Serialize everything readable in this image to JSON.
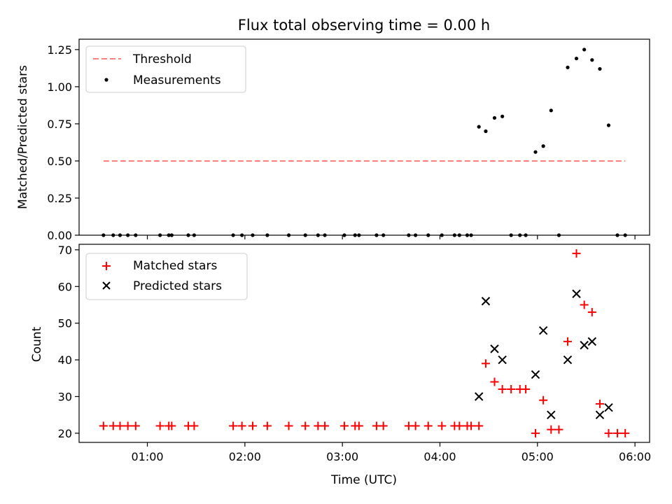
{
  "chart_data": [
    {
      "type": "scatter",
      "title": "Flux total observing time = 0.00 h",
      "ylabel": "Matched/Predicted stars",
      "xlabel": "",
      "xlim": [
        0.3,
        6.15
      ],
      "ylim": [
        0,
        1.32
      ],
      "yticks": [
        0,
        0.25,
        0.5,
        0.75,
        1.0,
        1.25
      ],
      "ytick_labels": [
        "0.00",
        "0.25",
        "0.50",
        "0.75",
        "1.00",
        "1.25"
      ],
      "xticks": [
        1,
        2,
        3,
        4,
        5,
        6
      ],
      "grid": false,
      "legend": {
        "position": "top-left",
        "entries": [
          "Threshold",
          "Measurements"
        ]
      },
      "threshold": {
        "name": "Threshold",
        "value": 0.5,
        "x_range": [
          0.55,
          5.9
        ],
        "color": "#ff7f7f"
      },
      "series": [
        {
          "name": "Measurements",
          "marker": "dot",
          "color": "#000000",
          "x": [
            0.55,
            0.65,
            0.72,
            0.8,
            0.88,
            1.13,
            1.22,
            1.25,
            1.42,
            1.48,
            1.88,
            1.97,
            2.08,
            2.23,
            2.45,
            2.62,
            2.75,
            2.82,
            3.02,
            3.13,
            3.17,
            3.35,
            3.42,
            3.68,
            3.75,
            3.88,
            4.02,
            4.15,
            4.2,
            4.28,
            4.32,
            4.4,
            4.47,
            4.56,
            4.64,
            4.73,
            4.82,
            4.88,
            4.98,
            5.06,
            5.14,
            5.22,
            5.31,
            5.4,
            5.48,
            5.56,
            5.64,
            5.73,
            5.82,
            5.9
          ],
          "y": [
            0,
            0,
            0,
            0,
            0,
            0,
            0,
            0,
            0,
            0,
            0,
            0,
            0,
            0,
            0,
            0,
            0,
            0,
            0,
            0,
            0,
            0,
            0,
            0,
            0,
            0,
            0,
            0,
            0,
            0,
            0,
            0.73,
            0.7,
            0.79,
            0.8,
            0,
            0,
            0,
            0.56,
            0.6,
            0.84,
            0,
            1.13,
            1.19,
            1.25,
            1.18,
            1.12,
            0.74,
            0,
            0
          ]
        }
      ]
    },
    {
      "type": "scatter",
      "title": "",
      "ylabel": "Count",
      "xlabel": "Time (UTC)",
      "xlim": [
        0.3,
        6.15
      ],
      "ylim": [
        17.5,
        71.5
      ],
      "yticks": [
        20,
        30,
        40,
        50,
        60,
        70
      ],
      "xticks": [
        1,
        2,
        3,
        4,
        5,
        6
      ],
      "xtick_labels": [
        "01:00",
        "02:00",
        "03:00",
        "04:00",
        "05:00",
        "06:00"
      ],
      "grid": false,
      "legend": {
        "position": "top-left",
        "entries": [
          "Matched stars",
          "Predicted stars"
        ]
      },
      "series": [
        {
          "name": "Matched stars",
          "marker": "plus",
          "color": "#ff0000",
          "x": [
            0.55,
            0.65,
            0.72,
            0.8,
            0.88,
            1.13,
            1.22,
            1.25,
            1.42,
            1.48,
            1.88,
            1.97,
            2.08,
            2.23,
            2.45,
            2.62,
            2.75,
            2.82,
            3.02,
            3.13,
            3.17,
            3.35,
            3.42,
            3.68,
            3.75,
            3.88,
            4.02,
            4.15,
            4.2,
            4.28,
            4.32,
            4.4,
            4.47,
            4.56,
            4.64,
            4.73,
            4.82,
            4.88,
            4.98,
            5.06,
            5.14,
            5.22,
            5.31,
            5.4,
            5.48,
            5.56,
            5.64,
            5.73,
            5.82,
            5.9
          ],
          "y": [
            22,
            22,
            22,
            22,
            22,
            22,
            22,
            22,
            22,
            22,
            22,
            22,
            22,
            22,
            22,
            22,
            22,
            22,
            22,
            22,
            22,
            22,
            22,
            22,
            22,
            22,
            22,
            22,
            22,
            22,
            22,
            22,
            39,
            34,
            32,
            32,
            32,
            32,
            20,
            29,
            21,
            21,
            45,
            69,
            55,
            53,
            28,
            20,
            20,
            20
          ]
        },
        {
          "name": "Predicted stars",
          "marker": "x",
          "color": "#000000",
          "x": [
            4.4,
            4.47,
            4.56,
            4.64,
            4.98,
            5.06,
            5.14,
            5.31,
            5.4,
            5.48,
            5.56,
            5.64,
            5.73
          ],
          "y": [
            30,
            56,
            43,
            40,
            36,
            48,
            25,
            40,
            58,
            44,
            45,
            25,
            27
          ]
        }
      ]
    }
  ]
}
